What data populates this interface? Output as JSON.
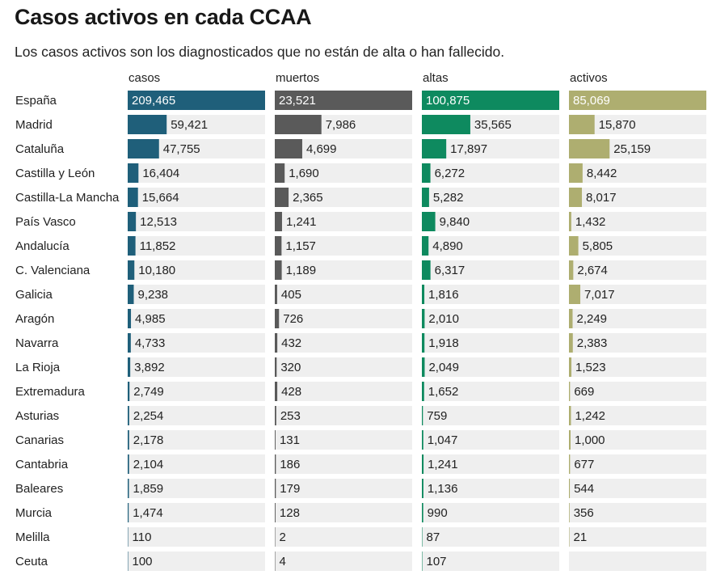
{
  "title": "Casos activos en cada CCAA",
  "subtitle": "Los casos activos son los diagnosticados que no están de alta o han fallecido.",
  "chart_data": {
    "type": "bar",
    "title": "Casos activos en cada CCAA",
    "subtitle": "Los casos activos son los diagnosticados que no están de alta o han fallecido.",
    "categories": [
      "España",
      "Madrid",
      "Cataluña",
      "Castilla y León",
      "Castilla-La Mancha",
      "País Vasco",
      "Andalucía",
      "C. Valenciana",
      "Galicia",
      "Aragón",
      "Navarra",
      "La Rioja",
      "Extremadura",
      "Asturias",
      "Canarias",
      "Cantabria",
      "Baleares",
      "Murcia",
      "Melilla",
      "Ceuta"
    ],
    "series": [
      {
        "name": "casos",
        "color": "#1f5f7a",
        "labels": [
          "209,465",
          "59,421",
          "47,755",
          "16,404",
          "15,664",
          "12,513",
          "11,852",
          "10,180",
          "9,238",
          "4,985",
          "4,733",
          "3,892",
          "2,749",
          "2,254",
          "2,178",
          "2,104",
          "1,859",
          "1,474",
          "110",
          "100"
        ],
        "values": [
          209465,
          59421,
          47755,
          16404,
          15664,
          12513,
          11852,
          10180,
          9238,
          4985,
          4733,
          3892,
          2749,
          2254,
          2178,
          2104,
          1859,
          1474,
          110,
          100
        ]
      },
      {
        "name": "muertos",
        "color": "#5a5a5a",
        "labels": [
          "23,521",
          "7,986",
          "4,699",
          "1,690",
          "2,365",
          "1,241",
          "1,157",
          "1,189",
          "405",
          "726",
          "432",
          "320",
          "428",
          "253",
          "131",
          "186",
          "179",
          "128",
          "2",
          "4"
        ],
        "values": [
          23521,
          7986,
          4699,
          1690,
          2365,
          1241,
          1157,
          1189,
          405,
          726,
          432,
          320,
          428,
          253,
          131,
          186,
          179,
          128,
          2,
          4
        ]
      },
      {
        "name": "altas",
        "color": "#0e8a5f",
        "labels": [
          "100,875",
          "35,565",
          "17,897",
          "6,272",
          "5,282",
          "9,840",
          "4,890",
          "6,317",
          "1,816",
          "2,010",
          "1,918",
          "2,049",
          "1,652",
          "759",
          "1,047",
          "1,241",
          "1,136",
          "990",
          "87",
          "107"
        ],
        "values": [
          100875,
          35565,
          17897,
          6272,
          5282,
          9840,
          4890,
          6317,
          1816,
          2010,
          1918,
          2049,
          1652,
          759,
          1047,
          1241,
          1136,
          990,
          87,
          107
        ]
      },
      {
        "name": "activos",
        "color": "#aeae70",
        "labels": [
          "85,069",
          "15,870",
          "25,159",
          "8,442",
          "8,017",
          "1,432",
          "5,805",
          "2,674",
          "7,017",
          "2,249",
          "2,383",
          "1,523",
          "669",
          "1,242",
          "1,000",
          "677",
          "544",
          "356",
          "21",
          ""
        ],
        "values": [
          85069,
          15870,
          25159,
          8442,
          8017,
          1432,
          5805,
          2674,
          7017,
          2249,
          2383,
          1523,
          669,
          1242,
          1000,
          677,
          544,
          356,
          21,
          null
        ]
      }
    ],
    "track_color": "#efefef"
  }
}
